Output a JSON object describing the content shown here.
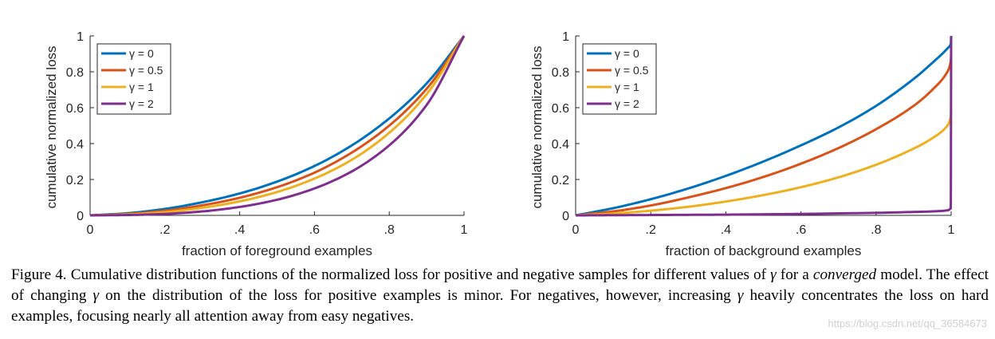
{
  "chart_data": [
    {
      "type": "line",
      "title": "",
      "xlabel": "fraction of foreground examples",
      "ylabel": "cumulative normalized loss",
      "xlim": [
        0,
        1
      ],
      "ylim": [
        0,
        1
      ],
      "xticks": [
        0,
        0.2,
        0.4,
        0.6,
        0.8,
        1
      ],
      "xtick_labels": [
        "0",
        ".2",
        ".4",
        ".6",
        ".8",
        "1"
      ],
      "yticks": [
        0,
        0.2,
        0.4,
        0.6,
        0.8,
        1
      ],
      "ytick_labels": [
        "0",
        "0.2",
        "0.4",
        "0.6",
        "0.8",
        "1"
      ],
      "grid": false,
      "legend_position": "top-left",
      "x": [
        0,
        0.1,
        0.2,
        0.3,
        0.4,
        0.5,
        0.6,
        0.7,
        0.8,
        0.9,
        1.0
      ],
      "series": [
        {
          "name": "γ = 0",
          "gamma_value": "0",
          "color": "#0072BD",
          "values": [
            0,
            0.012,
            0.036,
            0.073,
            0.122,
            0.188,
            0.275,
            0.39,
            0.54,
            0.735,
            1.0
          ]
        },
        {
          "name": "γ = 0.5",
          "gamma_value": "0.5",
          "color": "#D95319",
          "values": [
            0,
            0.008,
            0.026,
            0.056,
            0.098,
            0.157,
            0.238,
            0.35,
            0.5,
            0.705,
            1.0
          ]
        },
        {
          "name": "γ = 1",
          "gamma_value": "1",
          "color": "#EDB120",
          "values": [
            0,
            0.005,
            0.018,
            0.042,
            0.078,
            0.13,
            0.205,
            0.31,
            0.46,
            0.675,
            1.0
          ]
        },
        {
          "name": "γ = 2",
          "gamma_value": "2",
          "color": "#7E2F8E",
          "values": [
            0,
            0.002,
            0.008,
            0.022,
            0.047,
            0.087,
            0.15,
            0.245,
            0.39,
            0.615,
            1.0
          ]
        }
      ]
    },
    {
      "type": "line",
      "title": "",
      "xlabel": "fraction of background examples",
      "ylabel": "cumulative normalized loss",
      "xlim": [
        0,
        1
      ],
      "ylim": [
        0,
        1
      ],
      "xticks": [
        0,
        0.2,
        0.4,
        0.6,
        0.8,
        1
      ],
      "xtick_labels": [
        "0",
        ".2",
        ".4",
        ".6",
        ".8",
        "1"
      ],
      "yticks": [
        0,
        0.2,
        0.4,
        0.6,
        0.8,
        1
      ],
      "ytick_labels": [
        "0",
        "0.2",
        "0.4",
        "0.6",
        "0.8",
        "1"
      ],
      "grid": false,
      "legend_position": "top-left",
      "x": [
        0,
        0.1,
        0.2,
        0.3,
        0.4,
        0.5,
        0.6,
        0.7,
        0.8,
        0.9,
        0.95,
        0.99,
        0.999,
        1.0
      ],
      "series": [
        {
          "name": "γ = 0",
          "gamma_value": "0",
          "color": "#0072BD",
          "values": [
            0,
            0.04,
            0.09,
            0.15,
            0.22,
            0.3,
            0.39,
            0.49,
            0.61,
            0.76,
            0.85,
            0.93,
            0.955,
            1.0
          ]
        },
        {
          "name": "γ = 0.5",
          "gamma_value": "0.5",
          "color": "#D95319",
          "values": [
            0,
            0.022,
            0.055,
            0.1,
            0.152,
            0.214,
            0.288,
            0.375,
            0.48,
            0.61,
            0.7,
            0.8,
            0.86,
            0.9
          ]
        },
        {
          "name": "γ = 1",
          "gamma_value": "1",
          "color": "#EDB120",
          "values": [
            0,
            0.01,
            0.026,
            0.048,
            0.077,
            0.113,
            0.157,
            0.212,
            0.282,
            0.372,
            0.43,
            0.5,
            0.55,
            0.6
          ]
        },
        {
          "name": "γ = 2",
          "gamma_value": "2",
          "color": "#7E2F8E",
          "values": [
            0,
            0.001,
            0.002,
            0.003,
            0.004,
            0.006,
            0.008,
            0.011,
            0.014,
            0.019,
            0.022,
            0.028,
            0.04,
            1.0
          ]
        }
      ]
    }
  ],
  "caption": {
    "fig_label": "Figure 4.",
    "part1": " Cumulative distribution functions of the normalized loss for positive and negative samples for different values of ",
    "gamma": "γ",
    "part2": " for a ",
    "converged": "converged",
    "part3": " model. The effect of changing ",
    "part4": " on the distribution of the loss for positive examples is minor. For negatives, however, increasing ",
    "part5": " heavily concentrates the loss on hard examples, focusing nearly all attention away from easy negatives."
  },
  "watermark": "https://blog.csdn.net/qq_36584673"
}
